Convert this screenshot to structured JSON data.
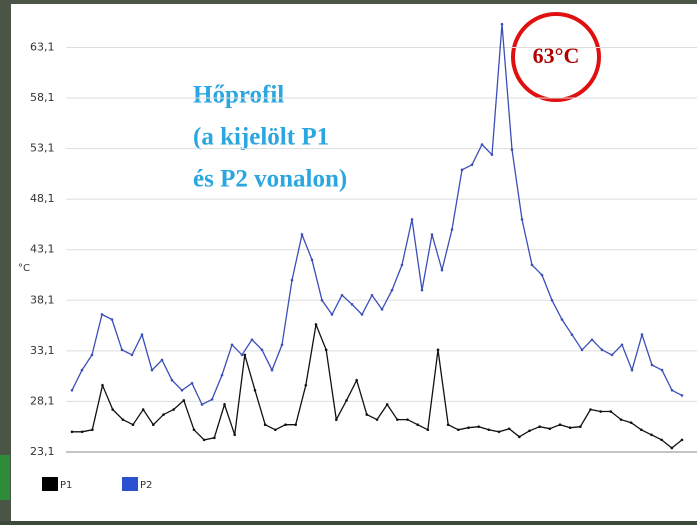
{
  "chart_data": {
    "type": "line",
    "annotation": [
      "Hőprofil",
      "(a kijelölt P1",
      "és P2 vonalon)"
    ],
    "badge": "63°C",
    "ylabel": "°C",
    "ylim": [
      23.1,
      67.1
    ],
    "yticks": [
      {
        "value": 23.1,
        "label": "23,1"
      },
      {
        "value": 28.1,
        "label": "28,1"
      },
      {
        "value": 33.1,
        "label": "33,1"
      },
      {
        "value": 38.1,
        "label": "38,1"
      },
      {
        "value": 43.1,
        "label": "43,1"
      },
      {
        "value": 48.1,
        "label": "48,1"
      },
      {
        "value": 53.1,
        "label": "53,1"
      },
      {
        "value": 58.1,
        "label": "58,1"
      },
      {
        "value": 63.1,
        "label": "63,1"
      }
    ],
    "grid": true,
    "series": [
      {
        "name": "P1",
        "color": "#111111",
        "values": [
          25.1,
          25.1,
          25.3,
          29.7,
          27.3,
          26.3,
          25.8,
          27.3,
          25.8,
          26.8,
          27.3,
          28.2,
          25.3,
          24.3,
          24.5,
          27.8,
          24.8,
          32.7,
          29.2,
          25.8,
          25.3,
          25.8,
          25.8,
          29.7,
          35.7,
          33.2,
          26.3,
          28.2,
          30.2,
          26.8,
          26.3,
          27.8,
          26.3,
          26.3,
          25.8,
          25.3,
          33.2,
          25.8,
          25.3,
          25.5,
          25.6,
          25.3,
          25.1,
          25.4,
          24.6,
          25.2,
          25.6,
          25.4,
          25.8,
          25.5,
          25.6,
          27.3,
          27.1,
          27.1,
          26.3,
          26.0,
          25.3,
          24.8,
          24.3,
          23.5,
          24.3
        ]
      },
      {
        "name": "P2",
        "color": "#3b4fb8",
        "values": [
          29.2,
          31.2,
          32.7,
          36.7,
          36.2,
          33.2,
          32.7,
          34.7,
          31.2,
          32.2,
          30.2,
          29.2,
          29.9,
          27.8,
          28.3,
          30.7,
          33.7,
          32.7,
          34.2,
          33.2,
          31.2,
          33.7,
          40.1,
          44.6,
          42.1,
          38.1,
          36.7,
          38.6,
          37.7,
          36.7,
          38.6,
          37.2,
          39.1,
          41.6,
          46.1,
          39.1,
          44.6,
          41.1,
          45.1,
          51.0,
          51.5,
          53.5,
          52.5,
          65.4,
          53.0,
          46.1,
          41.6,
          40.6,
          38.1,
          36.2,
          34.7,
          33.2,
          34.2,
          33.2,
          32.7,
          33.7,
          31.2,
          34.7,
          31.7,
          31.2,
          29.2,
          28.7
        ]
      }
    ],
    "legend": "bottom-left"
  }
}
